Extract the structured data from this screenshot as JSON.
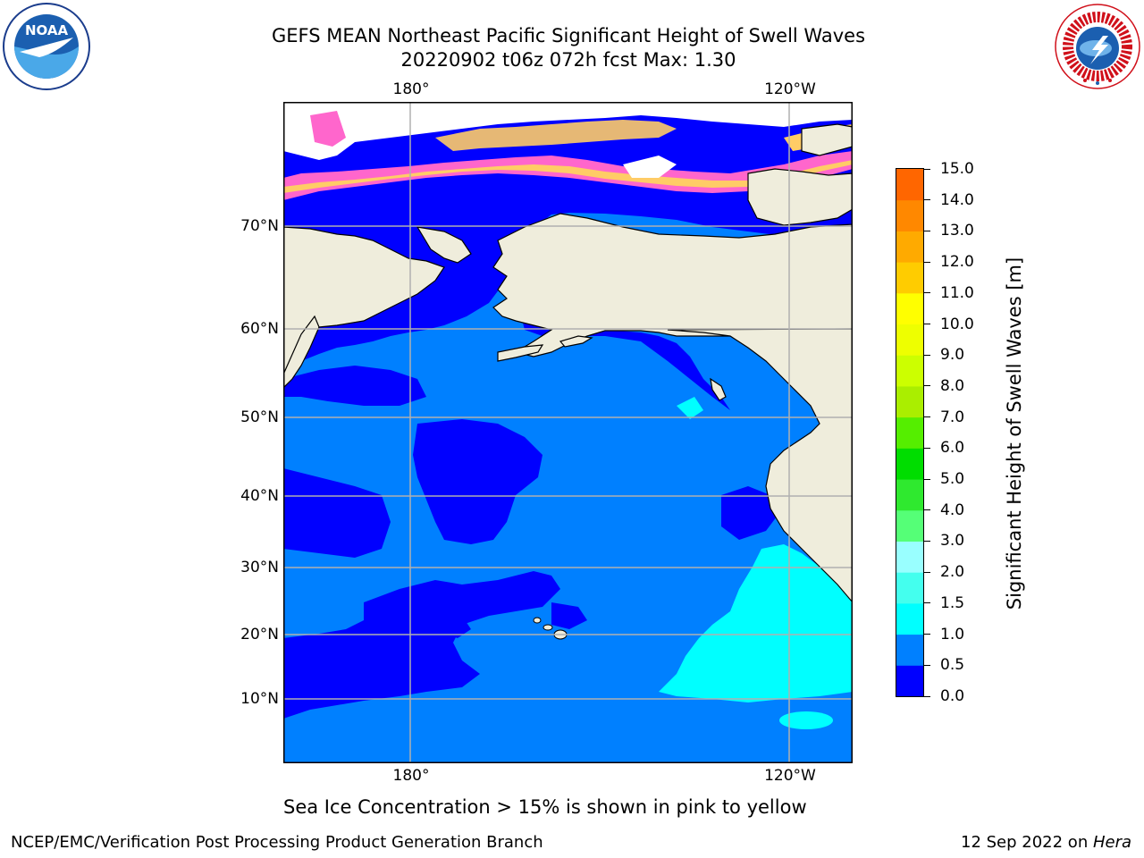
{
  "title": {
    "line1": "GEFS MEAN Northeast Pacific Significant Height of Swell Waves",
    "line2": "20220902 t06z 072h fcst   Max: 1.30"
  },
  "logos": {
    "noaa": {
      "text": "NOAA",
      "ring_text": "NATIONAL OCEANIC AND ATMOSPHERIC ADMINISTRATION · U.S. DEPARTMENT OF COMMERCE"
    },
    "nws": {
      "ring_text": "NATIONAL WEATHER SERVICE"
    }
  },
  "map": {
    "lat_labels": [
      "70°N",
      "60°N",
      "50°N",
      "40°N",
      "30°N",
      "20°N",
      "10°N"
    ],
    "lon_labels": [
      "180°",
      "120°W"
    ],
    "colors": {
      "land": "#efeddc",
      "swell_0_0p5": "#0000ff",
      "swell_0p5_1": "#0080ff",
      "swell_1_1p5": "#00ffff",
      "ice_pink": "#ff66cc",
      "ice_orange": "#ffcc66",
      "ice_none": "#ffffff",
      "grid": "#b0b0b0"
    }
  },
  "colorbar": {
    "label": "Significant Height of Swell Waves [m]",
    "ticks": [
      "15.0",
      "14.0",
      "13.0",
      "12.0",
      "11.0",
      "10.0",
      "9.0",
      "8.0",
      "7.0",
      "6.0",
      "5.0",
      "4.0",
      "3.0",
      "2.0",
      "1.5",
      "1.0",
      "0.5",
      "0.0"
    ],
    "colors": [
      "#0000ff",
      "#0080ff",
      "#00ffff",
      "#44ffee",
      "#99ffff",
      "#55ff77",
      "#2fe92f",
      "#00dd00",
      "#55ee00",
      "#aaee00",
      "#ccff00",
      "#eeff00",
      "#ffff00",
      "#ffcc00",
      "#ffaa00",
      "#ff8800",
      "#ff6600",
      "#ff3300",
      "#ff0000"
    ]
  },
  "note": "Sea Ice Concentration > 15% is shown in pink to yellow",
  "footer": {
    "left": "NCEP/EMC/Verification Post Processing Product Generation Branch",
    "right_date": "12 Sep 2022 on ",
    "right_host": "Hera"
  }
}
